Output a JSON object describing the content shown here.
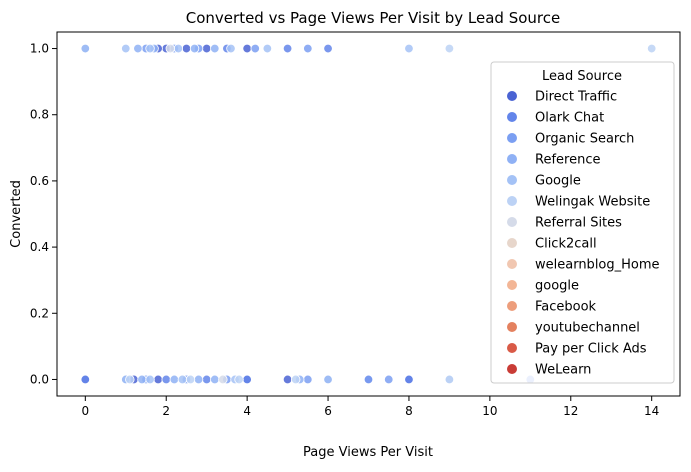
{
  "chart_data": {
    "type": "scatter",
    "title": "Converted vs Page Views Per Visit by Lead Source",
    "xlabel": "Page Views Per Visit",
    "ylabel": "Converted",
    "xlim": [
      -0.7,
      14.7
    ],
    "ylim": [
      -0.05,
      1.05
    ],
    "xticks": [
      0,
      2,
      4,
      6,
      8,
      10,
      12,
      14
    ],
    "yticks": [
      0.0,
      0.2,
      0.4,
      0.6,
      0.8,
      1.0
    ],
    "xtick_labels": [
      "0",
      "2",
      "4",
      "6",
      "8",
      "10",
      "12",
      "14"
    ],
    "ytick_labels": [
      "0.0",
      "0.2",
      "0.4",
      "0.6",
      "0.8",
      "1.0"
    ],
    "grid": false,
    "legend": {
      "title": "Lead Source",
      "placement": "right"
    },
    "series": [
      {
        "name": "Direct Traffic",
        "color": "#4a63d3",
        "points": [
          [
            2,
            1
          ],
          [
            4,
            1
          ],
          [
            3,
            1
          ],
          [
            2.5,
            1
          ],
          [
            1.8,
            1
          ],
          [
            0,
            0
          ],
          [
            1.2,
            0
          ],
          [
            1.8,
            0
          ],
          [
            5,
            0
          ],
          [
            7,
            0
          ],
          [
            8,
            0
          ],
          [
            4,
            0
          ]
        ]
      },
      {
        "name": "Olark Chat",
        "color": "#6385ea",
        "points": [
          [
            0,
            1
          ],
          [
            3.5,
            1
          ],
          [
            5,
            1
          ],
          [
            6,
            1
          ],
          [
            0,
            0
          ],
          [
            1,
            0
          ],
          [
            2,
            0
          ],
          [
            3,
            0
          ],
          [
            4,
            0
          ],
          [
            6,
            0
          ],
          [
            8,
            0
          ],
          [
            11,
            0
          ]
        ]
      },
      {
        "name": "Organic Search",
        "color": "#7b9ff2",
        "points": [
          [
            1.5,
            1
          ],
          [
            2.2,
            1
          ],
          [
            2.8,
            1
          ],
          [
            4.2,
            1
          ],
          [
            5.5,
            1
          ],
          [
            1.5,
            0
          ],
          [
            2.5,
            0
          ],
          [
            3.5,
            0
          ],
          [
            5.5,
            0
          ],
          [
            7,
            0
          ],
          [
            7.5,
            0
          ]
        ]
      },
      {
        "name": "Reference",
        "color": "#8fb1f5",
        "points": [
          [
            1.3,
            1
          ],
          [
            1.7,
            1
          ],
          [
            2.7,
            1
          ],
          [
            3.2,
            1
          ],
          [
            1.4,
            0
          ],
          [
            2.2,
            0
          ],
          [
            2.8,
            0
          ],
          [
            3.2,
            0
          ],
          [
            5.3,
            0
          ]
        ]
      },
      {
        "name": "Google",
        "color": "#a4c2f6",
        "points": [
          [
            0,
            1
          ],
          [
            1,
            1
          ],
          [
            1.6,
            1
          ],
          [
            2.3,
            1
          ],
          [
            3.6,
            1
          ],
          [
            4.5,
            1
          ],
          [
            8,
            1
          ],
          [
            1,
            0
          ],
          [
            1.6,
            0
          ],
          [
            2.4,
            0
          ],
          [
            3.7,
            0
          ],
          [
            6,
            0
          ],
          [
            9,
            0
          ]
        ]
      },
      {
        "name": "Welingak Website",
        "color": "#bcd2f5",
        "points": [
          [
            9,
            1
          ],
          [
            14,
            1
          ],
          [
            1.1,
            0
          ],
          [
            2.6,
            0
          ],
          [
            3.8,
            0
          ],
          [
            5.2,
            0
          ],
          [
            9,
            0
          ]
        ]
      },
      {
        "name": "Referral Sites",
        "color": "#d5dbe9",
        "points": [
          [
            2.1,
            1
          ],
          [
            3.4,
            0
          ]
        ]
      },
      {
        "name": "Click2call",
        "color": "#e7d6cb",
        "points": []
      },
      {
        "name": "welearnblog_Home",
        "color": "#f1c7b1",
        "points": []
      },
      {
        "name": "google",
        "color": "#f3b696",
        "points": []
      },
      {
        "name": "Facebook",
        "color": "#ed9e7c",
        "points": []
      },
      {
        "name": "youtubechannel",
        "color": "#e4815f",
        "points": []
      },
      {
        "name": "Pay per Click Ads",
        "color": "#d95a47",
        "points": []
      },
      {
        "name": "WeLearn",
        "color": "#c93c36",
        "points": []
      }
    ]
  }
}
